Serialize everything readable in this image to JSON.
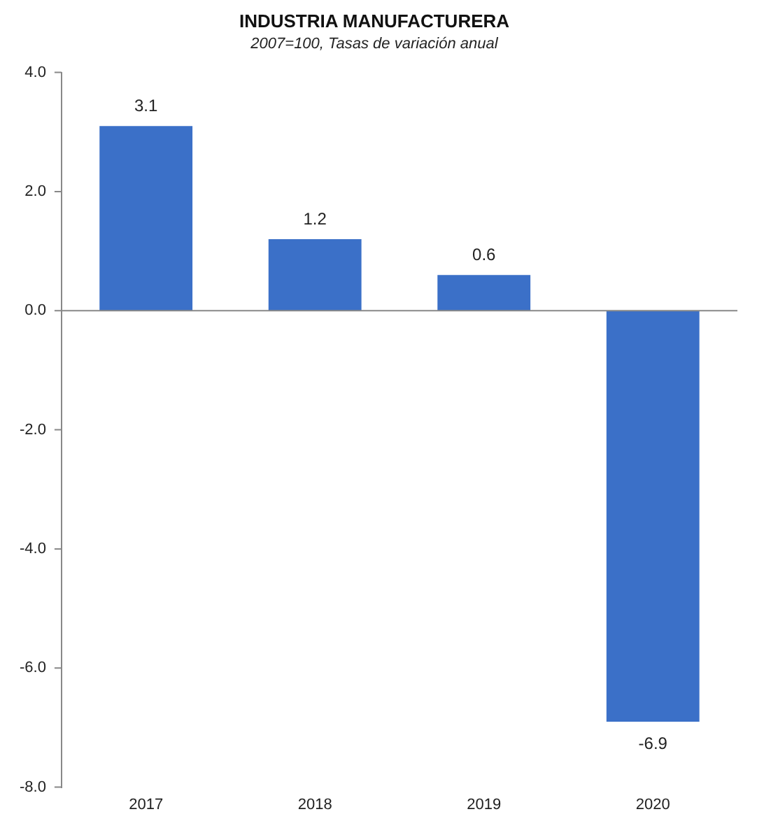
{
  "chart_data": {
    "type": "bar",
    "title": "INDUSTRIA MANUFACTURERA",
    "subtitle": "2007=100, Tasas de variación anual",
    "categories": [
      "2017",
      "2018",
      "2019",
      "2020"
    ],
    "series": [
      {
        "color": "#3b70c8",
        "values": [
          3.1,
          1.2,
          0.6,
          -6.9
        ]
      }
    ],
    "ylim": [
      -8,
      4
    ],
    "yticks": [
      {
        "value": -8,
        "label": "-8.0"
      },
      {
        "value": -6,
        "label": "-6.0"
      },
      {
        "value": -4,
        "label": "-4.0"
      },
      {
        "value": -2,
        "label": "-2.0"
      },
      {
        "value": 0,
        "label": "0.0"
      },
      {
        "value": 2,
        "label": "2.0"
      },
      {
        "value": 4,
        "label": "4.0"
      }
    ],
    "data_labels": true,
    "legend": false
  }
}
